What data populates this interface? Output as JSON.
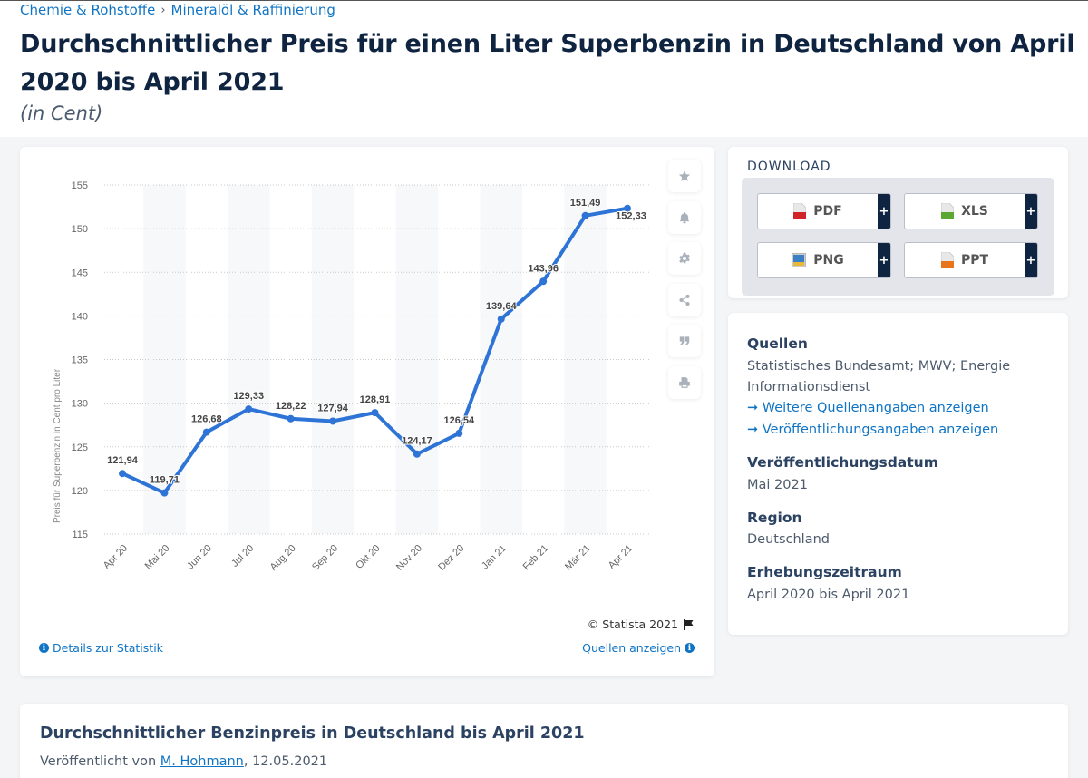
{
  "breadcrumb": [
    "Chemie & Rohstoffe",
    "Mineralöl & Raffinierung"
  ],
  "breadcrumb_separator": "›",
  "header": {
    "title": "Durchschnittlicher Preis für einen Liter Superbenzin in Deutschland von April 2020 bis April 2021",
    "subtitle": "(in Cent)"
  },
  "chart_data": {
    "type": "line",
    "title": "Durchschnittlicher Preis für einen Liter Superbenzin in Deutschland von April 2020 bis April 2021",
    "xlabel": "",
    "ylabel": "Preis für Superbenzin in Cent pro Liter",
    "categories": [
      "Apr 20",
      "Mai 20",
      "Jun 20",
      "Jul 20",
      "Aug 20",
      "Sep 20",
      "Okt 20",
      "Nov 20",
      "Dez 20",
      "Jan 21",
      "Feb 21",
      "Mär 21",
      "Apr 21"
    ],
    "values": [
      121.94,
      119.71,
      126.68,
      129.33,
      128.22,
      127.94,
      128.91,
      124.17,
      126.54,
      139.64,
      143.96,
      151.49,
      152.33
    ],
    "data_labels": [
      "121,94",
      "119,71",
      "126,68",
      "129,33",
      "128,22",
      "127,94",
      "128,91",
      "124,17",
      "126,54",
      "139,64",
      "143,96",
      "151,49",
      "152,33"
    ],
    "yticks": [
      115,
      120,
      125,
      130,
      135,
      140,
      145,
      150,
      155
    ],
    "ylim": [
      115,
      155
    ],
    "grid": true,
    "line_color": "#2e74d6"
  },
  "chart_tools": [
    {
      "name": "favorite",
      "icon": "star-icon"
    },
    {
      "name": "notification",
      "icon": "bell-icon"
    },
    {
      "name": "settings",
      "icon": "gear-icon"
    },
    {
      "name": "share",
      "icon": "share-icon"
    },
    {
      "name": "cite",
      "icon": "quote-icon"
    },
    {
      "name": "print",
      "icon": "printer-icon"
    }
  ],
  "chart_footer": {
    "copyright": "© Statista 2021",
    "details_link": "Details zur Statistik",
    "sources_link": "Quellen anzeigen"
  },
  "download": {
    "title": "DOWNLOAD",
    "buttons": [
      {
        "label": "PDF",
        "icon": "pdf-file-icon",
        "color": "#d0232a",
        "plus": "+"
      },
      {
        "label": "XLS",
        "icon": "xls-file-icon",
        "color": "#5aa831",
        "plus": "+"
      },
      {
        "label": "PNG",
        "icon": "png-image-icon",
        "color": "#3b7fc4",
        "plus": "+"
      },
      {
        "label": "PPT",
        "icon": "ppt-file-icon",
        "color": "#e8751a",
        "plus": "+"
      }
    ]
  },
  "info": {
    "sources_heading": "Quellen",
    "sources_value_line1": "Statistisches Bundesamt; MWV; Energie",
    "sources_value_line2": "Informationsdienst",
    "more_sources_link": "Weitere Quellenangaben anzeigen",
    "publication_info_link": "Veröffentlichungsangaben anzeigen",
    "link_arrow": "➞",
    "release_heading": "Veröffentlichungsdatum",
    "release_value": "Mai 2021",
    "region_heading": "Region",
    "region_value": "Deutschland",
    "period_heading": "Erhebungszeitraum",
    "period_value": "April 2020 bis April 2021"
  },
  "publication": {
    "title": "Durchschnittlicher Benzinpreis in Deutschland bis April 2021",
    "published_by_prefix": "Veröffentlicht von ",
    "author": "M. Hohmann",
    "date_suffix": ", 12.05.2021"
  }
}
